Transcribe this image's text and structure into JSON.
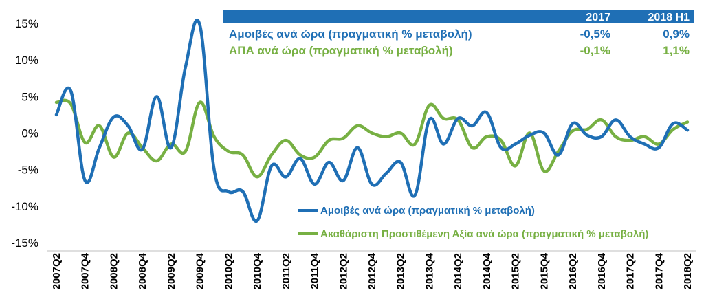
{
  "chart_data": {
    "type": "line",
    "ylim": [
      -15,
      15
    ],
    "yticks": [
      "15%",
      "10%",
      "5%",
      "0%",
      "-5%",
      "-10%",
      "-15%"
    ],
    "x": [
      "2007Q2",
      "2007Q3",
      "2007Q4",
      "2008Q1",
      "2008Q2",
      "2008Q3",
      "2008Q4",
      "2009Q1",
      "2009Q2",
      "2009Q3",
      "2009Q4",
      "2010Q1",
      "2010Q2",
      "2010Q3",
      "2010Q4",
      "2011Q1",
      "2011Q2",
      "2011Q3",
      "2011Q4",
      "2012Q1",
      "2012Q2",
      "2012Q3",
      "2012Q4",
      "2013Q1",
      "2013Q2",
      "2013Q3",
      "2013Q4",
      "2014Q1",
      "2014Q2",
      "2014Q3",
      "2014Q4",
      "2015Q1",
      "2015Q2",
      "2015Q3",
      "2015Q4",
      "2016Q1",
      "2016Q2",
      "2016Q3",
      "2016Q4",
      "2017Q1",
      "2017Q2",
      "2017Q3",
      "2017Q4",
      "2018Q1",
      "2018Q2"
    ],
    "xtick_labels": [
      "2007Q2",
      "2007Q4",
      "2008Q2",
      "2008Q4",
      "2009Q2",
      "2009Q4",
      "2010Q2",
      "2010Q4",
      "2011Q2",
      "2011Q4",
      "2012Q2",
      "2012Q4",
      "2013Q2",
      "2013Q4",
      "2014Q2",
      "2014Q4",
      "2015Q2",
      "2015Q4",
      "2016Q2",
      "2016Q4",
      "2017Q2",
      "2017Q4",
      "2018Q2"
    ],
    "grid": false,
    "legend_placement": "bottom-right",
    "series": [
      {
        "name": "Αμοιβές ανά ώρα (πραγματική % μεταβολή)",
        "color": "#1f6fb5",
        "values": [
          2.5,
          5.8,
          -6.5,
          -2.0,
          2.2,
          1.0,
          -2.2,
          5.0,
          -2.0,
          9.0,
          14.8,
          -5.0,
          -8.0,
          -8.0,
          -12.0,
          -4.5,
          -6.0,
          -3.5,
          -7.0,
          -4.0,
          -6.5,
          -2.0,
          -7.0,
          -5.5,
          -4.0,
          -8.5,
          1.8,
          -1.5,
          2.0,
          1.0,
          2.8,
          -2.0,
          -1.5,
          -0.3,
          0.0,
          -3.0,
          1.3,
          -0.3,
          -0.5,
          1.8,
          -0.5,
          -1.5,
          -2.0,
          1.3,
          0.4
        ]
      },
      {
        "name": "Ακαθάριστη Προστιθέμενη Αξία ανά ώρα (πραγματική % μεταβολή)",
        "color": "#77b043",
        "values": [
          4.2,
          4.0,
          -1.3,
          1.0,
          -3.3,
          0.0,
          -2.0,
          -3.8,
          -1.5,
          -2.5,
          4.2,
          -0.5,
          -2.5,
          -3.0,
          -6.0,
          -3.0,
          -1.0,
          -3.0,
          -3.3,
          -1.0,
          -0.7,
          1.0,
          0.0,
          -0.5,
          0.0,
          -1.5,
          3.8,
          2.0,
          1.8,
          -2.0,
          -0.5,
          -1.0,
          -4.5,
          0.0,
          -5.2,
          -2.5,
          0.3,
          0.5,
          1.8,
          -0.5,
          -1.0,
          -0.5,
          -1.5,
          0.5,
          1.5
        ]
      }
    ]
  },
  "legend": {
    "items": [
      {
        "label": "Αμοιβές ανά ώρα (πραγματική % μεταβολή)",
        "color": "#1f6fb5"
      },
      {
        "label": "Ακαθάριστη Προστιθέμενη Αξία ανά ώρα (πραγματική % μεταβολή)",
        "color": "#77b043"
      }
    ]
  },
  "table": {
    "header_bg": "#1f6fb5",
    "col1": "2017",
    "col2": "2018 H1",
    "rows": [
      {
        "label": "Αμοιβές ανά ώρα (πραγματική % μεταβολή)",
        "v1": "-0,5%",
        "v2": "0,9%",
        "color": "#1f6fb5"
      },
      {
        "label": "ΑΠΑ ανά ώρα (πραγματική % μεταβολή)",
        "v1": "-0,1%",
        "v2": "1,1%",
        "color": "#77b043"
      }
    ]
  }
}
